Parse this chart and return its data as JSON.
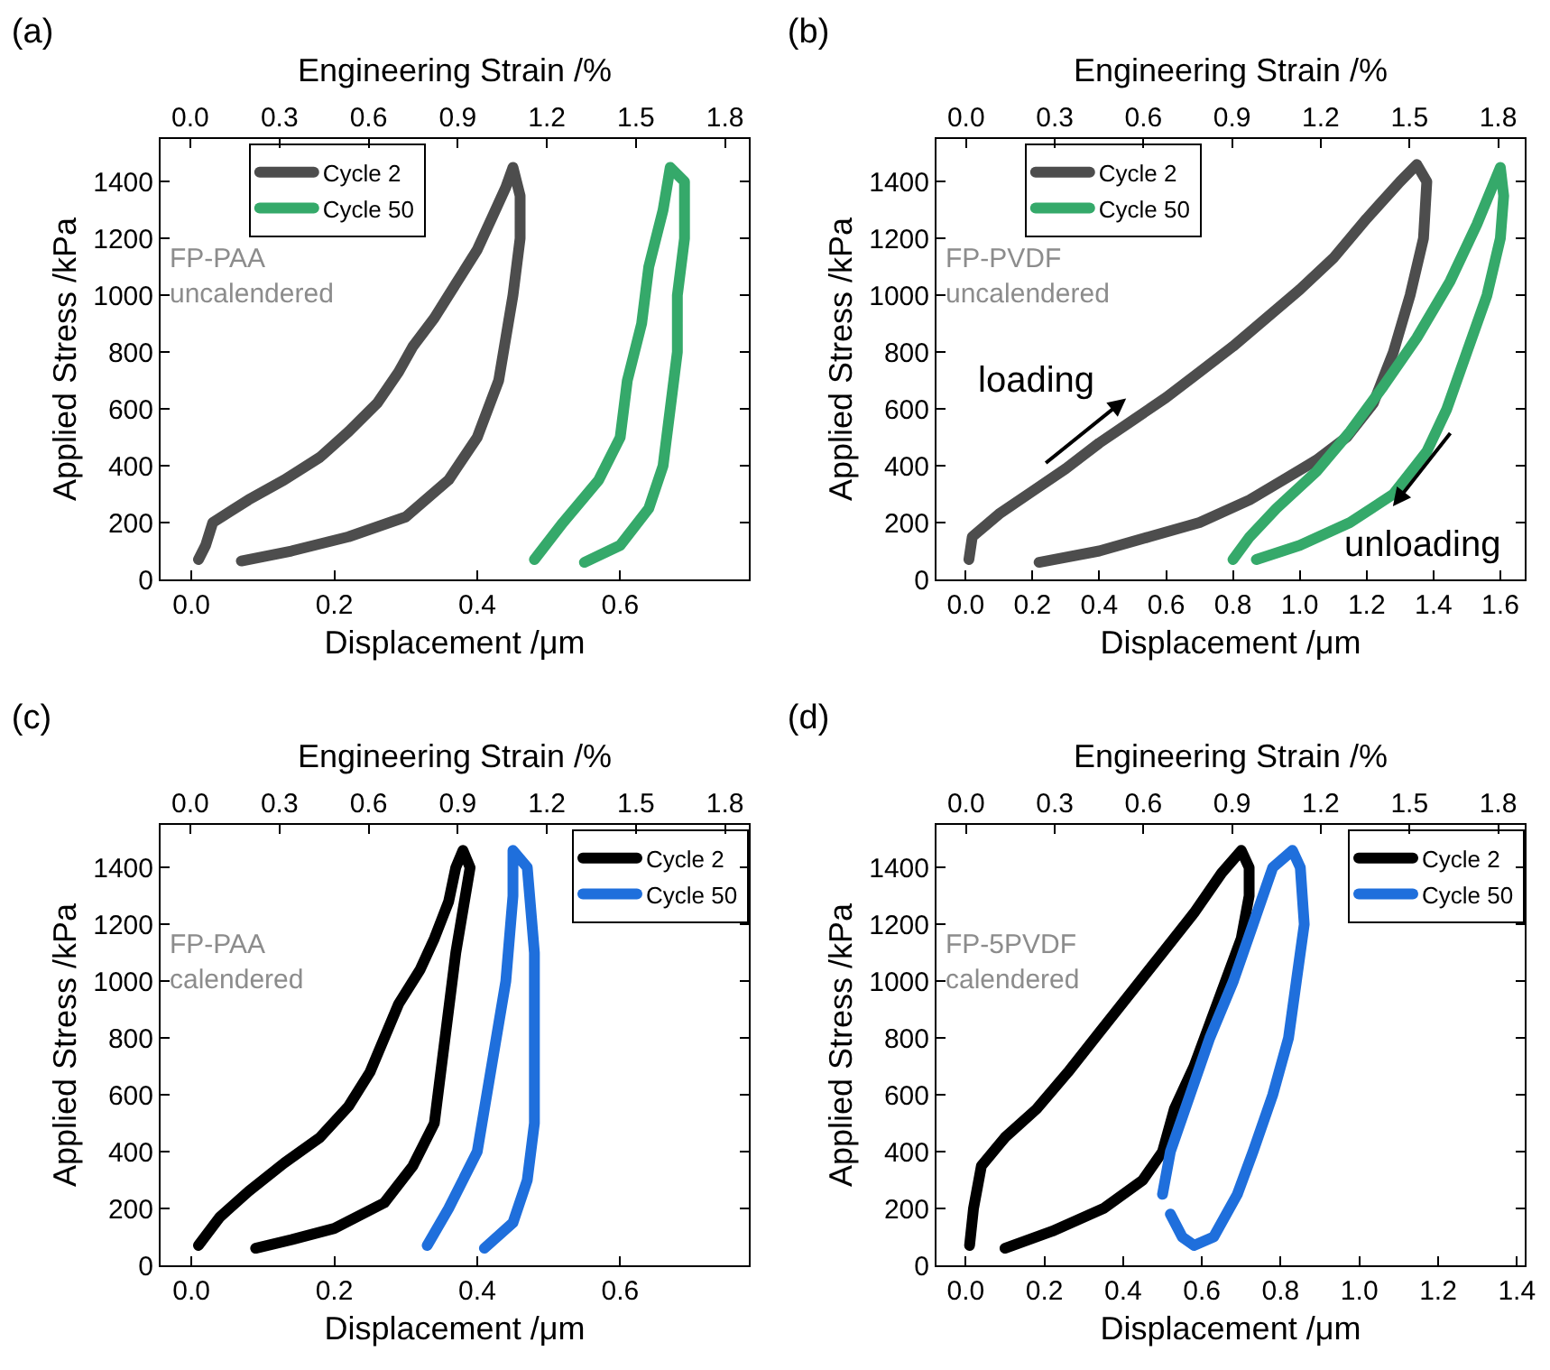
{
  "chart_data": [
    {
      "type": "line",
      "title": "(a)",
      "xlabel": "Displacement /μm",
      "ylabel": "Applied Stress /kPa",
      "x2label": "Engineering Strain /%",
      "legend": "top left",
      "annotations": [
        "FP-PAA\nuncalendered"
      ],
      "xlim": [
        -0.043,
        0.78
      ],
      "xticks": [
        {
          "value": 0,
          "label": "0.0"
        },
        {
          "value": 0.2,
          "label": "0.2"
        },
        {
          "value": 0.4,
          "label": "0.4"
        },
        {
          "value": 0.6,
          "label": "0.6"
        }
      ],
      "x2lim": [
        -0.1,
        1.88
      ],
      "x2ticks": [
        {
          "value": 0,
          "label": "0.0"
        },
        {
          "value": 0.3,
          "label": "0.3"
        },
        {
          "value": 0.6,
          "label": "0.6"
        },
        {
          "value": 0.9,
          "label": "0.9"
        },
        {
          "value": 1.2,
          "label": "1.2"
        },
        {
          "value": 1.5,
          "label": "1.5"
        },
        {
          "value": 1.8,
          "label": "1.8"
        }
      ],
      "ylim": [
        0,
        1550
      ],
      "yticks": [
        0,
        200,
        400,
        600,
        800,
        1000,
        1200,
        1400
      ],
      "series": [
        {
          "name": "Cycle 2",
          "color": "#4d4d4d",
          "x": [
            0.01,
            0.02,
            0.03,
            0.08,
            0.13,
            0.18,
            0.22,
            0.26,
            0.29,
            0.31,
            0.34,
            0.37,
            0.4,
            0.42,
            0.44,
            0.45,
            0.46,
            0.46,
            0.45,
            0.44,
            0.43,
            0.4,
            0.36,
            0.3,
            0.22,
            0.14,
            0.07
          ],
          "values": [
            70,
            120,
            200,
            280,
            350,
            430,
            520,
            620,
            730,
            820,
            920,
            1040,
            1160,
            1270,
            1380,
            1450,
            1350,
            1200,
            1000,
            850,
            700,
            500,
            350,
            220,
            150,
            100,
            65
          ]
        },
        {
          "name": "Cycle 50",
          "color": "#35a96a",
          "x": [
            0.48,
            0.52,
            0.57,
            0.6,
            0.61,
            0.63,
            0.64,
            0.66,
            0.67,
            0.69,
            0.69,
            0.68,
            0.68,
            0.67,
            0.66,
            0.64,
            0.6,
            0.55
          ],
          "values": [
            70,
            200,
            350,
            500,
            700,
            900,
            1100,
            1300,
            1450,
            1400,
            1200,
            1000,
            800,
            600,
            400,
            250,
            120,
            60
          ]
        }
      ]
    },
    {
      "type": "line",
      "title": "(b)",
      "xlabel": "Displacement /μm",
      "ylabel": "Applied Stress /kPa",
      "x2label": "Engineering Strain /%",
      "legend": "top left",
      "annotations": [
        "FP-PVDF\nuncalendered",
        "loading",
        "unloading"
      ],
      "xlim": [
        -0.087,
        1.673
      ],
      "xticks": [
        {
          "value": 0,
          "label": "0.0"
        },
        {
          "value": 0.2,
          "label": "0.2"
        },
        {
          "value": 0.4,
          "label": "0.4"
        },
        {
          "value": 0.6,
          "label": "0.6"
        },
        {
          "value": 0.8,
          "label": "0.8"
        },
        {
          "value": 1,
          "label": "1.0"
        },
        {
          "value": 1.2,
          "label": "1.2"
        },
        {
          "value": 1.4,
          "label": "1.4"
        },
        {
          "value": 1.6,
          "label": "1.6"
        }
      ],
      "x2lim": [
        -0.1,
        1.89
      ],
      "x2ticks": [
        {
          "value": 0,
          "label": "0.0"
        },
        {
          "value": 0.3,
          "label": "0.3"
        },
        {
          "value": 0.6,
          "label": "0.6"
        },
        {
          "value": 0.9,
          "label": "0.9"
        },
        {
          "value": 1.2,
          "label": "1.2"
        },
        {
          "value": 1.5,
          "label": "1.5"
        },
        {
          "value": 1.8,
          "label": "1.8"
        }
      ],
      "ylim": [
        0,
        1550
      ],
      "yticks": [
        0,
        200,
        400,
        600,
        800,
        1000,
        1200,
        1400
      ],
      "series": [
        {
          "name": "Cycle 2",
          "color": "#4d4d4d",
          "x": [
            0.01,
            0.02,
            0.1,
            0.2,
            0.3,
            0.4,
            0.5,
            0.6,
            0.7,
            0.8,
            0.9,
            1.0,
            1.1,
            1.2,
            1.3,
            1.35,
            1.38,
            1.37,
            1.33,
            1.28,
            1.22,
            1.14,
            1.05,
            0.95,
            0.85,
            0.7,
            0.55,
            0.4,
            0.22
          ],
          "values": [
            70,
            150,
            230,
            310,
            390,
            480,
            560,
            640,
            730,
            820,
            920,
            1020,
            1130,
            1270,
            1400,
            1460,
            1400,
            1200,
            1000,
            800,
            620,
            500,
            420,
            350,
            280,
            200,
            150,
            100,
            60
          ]
        },
        {
          "name": "Cycle 50",
          "color": "#35a96a",
          "x": [
            0.8,
            0.85,
            0.93,
            1.05,
            1.15,
            1.25,
            1.35,
            1.45,
            1.53,
            1.6,
            1.61,
            1.6,
            1.56,
            1.5,
            1.44,
            1.38,
            1.28,
            1.15,
            1.0,
            0.87
          ],
          "values": [
            70,
            150,
            250,
            380,
            520,
            680,
            850,
            1050,
            1250,
            1450,
            1350,
            1200,
            1000,
            800,
            600,
            450,
            300,
            200,
            120,
            70
          ]
        }
      ]
    },
    {
      "type": "line",
      "title": "(c)",
      "xlabel": "Displacement /μm",
      "ylabel": "Applied Stress /kPa",
      "x2label": "Engineering Strain /%",
      "legend": "top right",
      "annotations": [
        "FP-PAA\ncalendered"
      ],
      "xlim": [
        -0.043,
        0.78
      ],
      "xticks": [
        {
          "value": 0,
          "label": "0.0"
        },
        {
          "value": 0.2,
          "label": "0.2"
        },
        {
          "value": 0.4,
          "label": "0.4"
        },
        {
          "value": 0.6,
          "label": "0.6"
        }
      ],
      "x2lim": [
        -0.1,
        1.88
      ],
      "x2ticks": [
        {
          "value": 0,
          "label": "0.0"
        },
        {
          "value": 0.3,
          "label": "0.3"
        },
        {
          "value": 0.6,
          "label": "0.6"
        },
        {
          "value": 0.9,
          "label": "0.9"
        },
        {
          "value": 1.2,
          "label": "1.2"
        },
        {
          "value": 1.5,
          "label": "1.5"
        },
        {
          "value": 1.8,
          "label": "1.8"
        }
      ],
      "ylim": [
        0,
        1550
      ],
      "yticks": [
        0,
        200,
        400,
        600,
        800,
        1000,
        1200,
        1400
      ],
      "series": [
        {
          "name": "Cycle 2",
          "color": "#000000",
          "x": [
            0.01,
            0.04,
            0.08,
            0.13,
            0.18,
            0.22,
            0.25,
            0.27,
            0.29,
            0.32,
            0.34,
            0.36,
            0.37,
            0.38,
            0.39,
            0.38,
            0.37,
            0.36,
            0.35,
            0.34,
            0.31,
            0.27,
            0.2,
            0.14,
            0.09
          ],
          "values": [
            70,
            170,
            260,
            360,
            450,
            560,
            680,
            800,
            920,
            1040,
            1150,
            1280,
            1400,
            1460,
            1400,
            1250,
            1100,
            900,
            700,
            500,
            350,
            220,
            130,
            90,
            60
          ]
        },
        {
          "name": "Cycle 50",
          "color": "#1f6fdc",
          "x": [
            0.33,
            0.36,
            0.4,
            0.42,
            0.44,
            0.45,
            0.45,
            0.47,
            0.48,
            0.48,
            0.48,
            0.47,
            0.45,
            0.41
          ],
          "values": [
            70,
            200,
            400,
            700,
            1000,
            1300,
            1460,
            1400,
            1100,
            800,
            500,
            300,
            150,
            60
          ]
        }
      ]
    },
    {
      "type": "line",
      "title": "(d)",
      "xlabel": "Displacement /μm",
      "ylabel": "Applied Stress /kPa",
      "x2label": "Engineering Strain /%",
      "legend": "top right",
      "annotations": [
        "FP-5PVDF\ncalendered"
      ],
      "xlim": [
        -0.074,
        1.42
      ],
      "xticks": [
        {
          "value": 0,
          "label": "0.0"
        },
        {
          "value": 0.2,
          "label": "0.2"
        },
        {
          "value": 0.4,
          "label": "0.4"
        },
        {
          "value": 0.6,
          "label": "0.6"
        },
        {
          "value": 0.8,
          "label": "0.8"
        },
        {
          "value": 1,
          "label": "1.0"
        },
        {
          "value": 1.2,
          "label": "1.2"
        },
        {
          "value": 1.4,
          "label": "1.4"
        }
      ],
      "x2lim": [
        -0.1,
        1.89
      ],
      "x2ticks": [
        {
          "value": 0,
          "label": "0.0"
        },
        {
          "value": 0.3,
          "label": "0.3"
        },
        {
          "value": 0.6,
          "label": "0.6"
        },
        {
          "value": 0.9,
          "label": "0.9"
        },
        {
          "value": 1.2,
          "label": "1.2"
        },
        {
          "value": 1.5,
          "label": "1.5"
        },
        {
          "value": 1.8,
          "label": "1.8"
        }
      ],
      "ylim": [
        0,
        1550
      ],
      "yticks": [
        0,
        200,
        400,
        600,
        800,
        1000,
        1200,
        1400
      ],
      "series": [
        {
          "name": "Cycle 2",
          "color": "#000000",
          "x": [
            0.01,
            0.02,
            0.04,
            0.1,
            0.18,
            0.26,
            0.34,
            0.42,
            0.5,
            0.58,
            0.65,
            0.7,
            0.72,
            0.72,
            0.7,
            0.66,
            0.62,
            0.58,
            0.53,
            0.5,
            0.45,
            0.35,
            0.22,
            0.1
          ],
          "values": [
            70,
            200,
            350,
            450,
            550,
            680,
            820,
            960,
            1100,
            1240,
            1380,
            1460,
            1400,
            1300,
            1150,
            1000,
            850,
            700,
            550,
            400,
            300,
            200,
            120,
            60
          ]
        },
        {
          "name": "Cycle 50",
          "color": "#1f6fdc",
          "x": [
            0.5,
            0.52,
            0.57,
            0.62,
            0.68,
            0.73,
            0.78,
            0.83,
            0.85,
            0.86,
            0.84,
            0.82,
            0.78,
            0.73,
            0.69,
            0.63,
            0.58,
            0.55,
            0.52
          ],
          "values": [
            250,
            400,
            600,
            800,
            1000,
            1200,
            1400,
            1460,
            1400,
            1200,
            1000,
            800,
            600,
            400,
            250,
            100,
            70,
            100,
            180
          ]
        }
      ]
    }
  ]
}
